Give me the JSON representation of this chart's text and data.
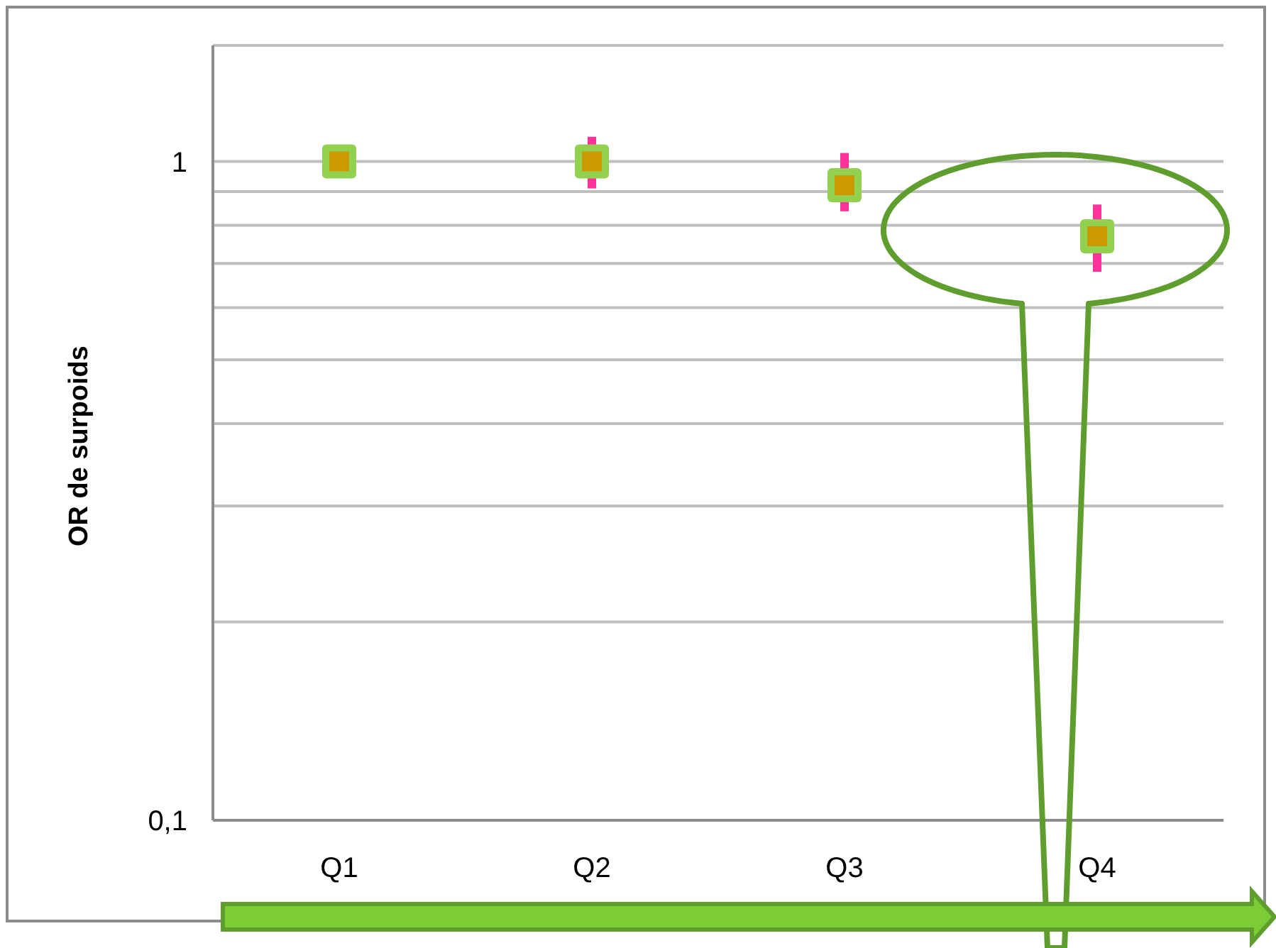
{
  "chart_data": {
    "type": "scatter",
    "ylabel": "OR de surpoids",
    "categories": [
      "Q1",
      "Q2",
      "Q3",
      "Q4"
    ],
    "series": [
      {
        "color": "#cc9900",
        "values": [
          1,
          1.0,
          0.92,
          0.77
        ],
        "errors": [
          null,
          [
            0.91,
            1.09
          ],
          [
            0.84,
            1.03
          ],
          [
            0.68,
            0.86
          ]
        ]
      }
    ],
    "log": "y",
    "ylim": [
      0.1,
      1.5
    ],
    "yticks": [
      {
        "value": 0.1,
        "label": "0,1"
      },
      {
        "value": 0.2,
        "label": null
      },
      {
        "value": 0.3,
        "label": null
      },
      {
        "value": 0.4,
        "label": null
      },
      {
        "value": 0.5,
        "label": null
      },
      {
        "value": 0.6,
        "label": null
      },
      {
        "value": 0.7,
        "label": null
      },
      {
        "value": 0.8,
        "label": null
      },
      {
        "value": 0.9,
        "label": null
      },
      1,
      {
        "value": 1.5,
        "label": null
      }
    ],
    "grid": "y",
    "marker": "square"
  }
}
